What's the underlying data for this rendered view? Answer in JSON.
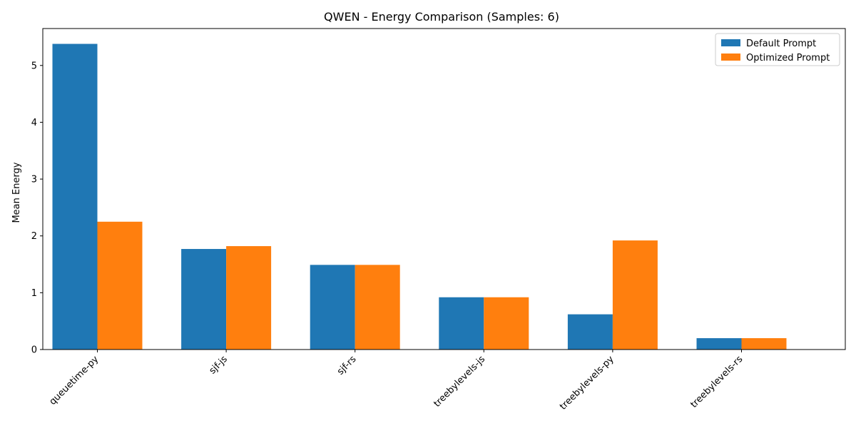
{
  "chart_data": {
    "type": "bar",
    "title": "QWEN - Energy Comparison (Samples: 6)",
    "xlabel": "",
    "ylabel": "Mean Energy",
    "categories": [
      "queuetime-py",
      "sjf-js",
      "sjf-rs",
      "treebylevels-js",
      "treebylevels-py",
      "treebylevels-rs"
    ],
    "series": [
      {
        "name": "Default Prompt",
        "color": "#1f77b4",
        "values": [
          5.38,
          1.77,
          1.49,
          0.92,
          0.62,
          0.2
        ]
      },
      {
        "name": "Optimized Prompt",
        "color": "#ff7f0e",
        "values": [
          2.25,
          1.82,
          1.49,
          0.92,
          1.92,
          0.2
        ]
      }
    ],
    "ylim": [
      0,
      5.65
    ],
    "yticks": [
      0,
      1,
      2,
      3,
      4,
      5
    ],
    "grid": false,
    "legend_position": "top-right"
  }
}
